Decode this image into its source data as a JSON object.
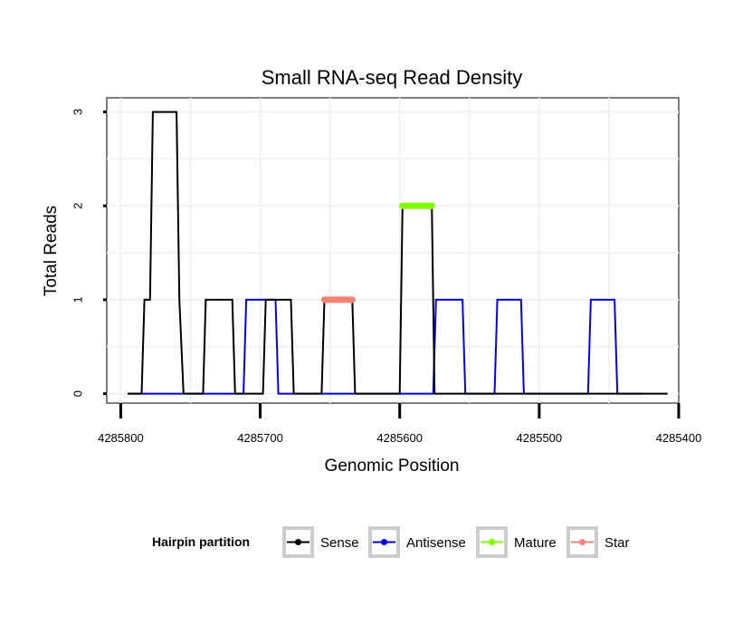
{
  "chart_data": {
    "type": "line",
    "title": "Small RNA-seq Read Density",
    "xlabel": "Genomic Position",
    "ylabel": "Total Reads",
    "xlim": [
      4285810,
      4285400
    ],
    "ylim": [
      -0.1,
      3.15
    ],
    "x_ticks": [
      4285800,
      4285700,
      4285600,
      4285500,
      4285400
    ],
    "x_tick_labels": [
      "4285800",
      "4285700",
      "4285600",
      "4285500",
      "4285400"
    ],
    "y_ticks": [
      0,
      1,
      2,
      3
    ],
    "y_tick_labels": [
      "0",
      "1",
      "2",
      "3"
    ],
    "grid": true,
    "legend": {
      "title": "Hairpin partition",
      "placement": "bottom",
      "entries": [
        {
          "name": "Sense",
          "color": "#000000"
        },
        {
          "name": "Antisense",
          "color": "#0000ff"
        },
        {
          "name": "Mature",
          "color": "#7fff00"
        },
        {
          "name": "Star",
          "color": "#fa8072"
        }
      ]
    },
    "series": [
      {
        "name": "Antisense",
        "color": "#0000ff",
        "x": [
          4285795,
          4285712,
          4285710,
          4285689,
          4285687,
          4285633,
          4285631,
          4285600,
          4285598,
          4285576,
          4285574,
          4285555,
          4285553,
          4285532,
          4285530,
          4285513,
          4285511,
          4285491,
          4285489,
          4285465,
          4285463,
          4285446,
          4285444,
          4285426
        ],
        "y": [
          0,
          0,
          1,
          1,
          0,
          0,
          0,
          0,
          0,
          0,
          1,
          1,
          0,
          0,
          1,
          1,
          0,
          0,
          0,
          0,
          1,
          1,
          0,
          0
        ]
      },
      {
        "name": "Sense",
        "color": "#000000",
        "x": [
          4285795,
          4285785,
          4285783,
          4285779,
          4285777,
          4285760,
          4285758,
          4285755,
          4285741,
          4285739,
          4285720,
          4285718,
          4285698,
          4285696,
          4285678,
          4285676,
          4285656,
          4285654,
          4285634,
          4285632,
          4285600,
          4285598,
          4285577,
          4285575,
          4285408
        ],
        "y": [
          0,
          0,
          1,
          1,
          3,
          3,
          1,
          0,
          0,
          1,
          1,
          0,
          0,
          1,
          1,
          0,
          0,
          1,
          1,
          0,
          0,
          2,
          2,
          0,
          0
        ]
      },
      {
        "name": "Mature",
        "color": "#7fff00",
        "x": [
          4285598,
          4285577
        ],
        "y": [
          2,
          2
        ]
      },
      {
        "name": "Star",
        "color": "#fa8072",
        "x": [
          4285654,
          4285634
        ],
        "y": [
          1,
          1
        ]
      }
    ]
  }
}
